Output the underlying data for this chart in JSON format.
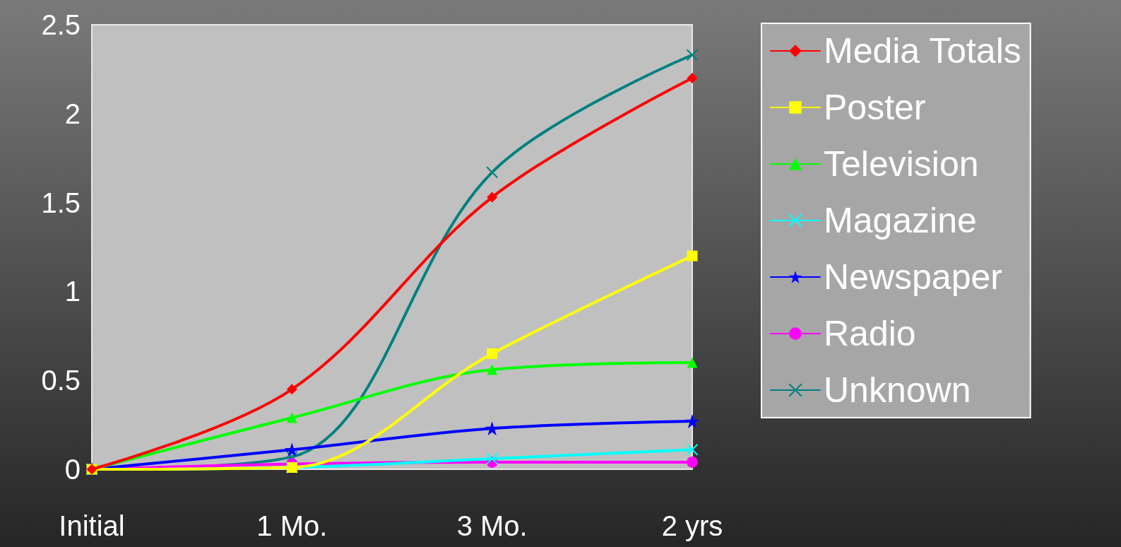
{
  "chart_data": {
    "type": "line",
    "categories": [
      "Initial",
      "1 Mo.",
      "3 Mo.",
      "2 yrs"
    ],
    "series": [
      {
        "name": "Media Totals",
        "color": "#ff0000",
        "marker": "diamond",
        "values": [
          0,
          0.45,
          1.53,
          2.2
        ]
      },
      {
        "name": "Poster",
        "color": "#ffff00",
        "marker": "square",
        "values": [
          0,
          0.01,
          0.65,
          1.2
        ]
      },
      {
        "name": "Television",
        "color": "#00ff00",
        "marker": "triangle",
        "values": [
          0,
          0.29,
          0.56,
          0.6
        ]
      },
      {
        "name": "Magazine",
        "color": "#00ffff",
        "marker": "cross",
        "values": [
          0,
          0.01,
          0.06,
          0.11
        ]
      },
      {
        "name": "Newspaper",
        "color": "#0000ff",
        "marker": "star",
        "values": [
          0,
          0.11,
          0.23,
          0.27
        ]
      },
      {
        "name": "Radio",
        "color": "#ff00ff",
        "marker": "circle",
        "values": [
          0,
          0.03,
          0.04,
          0.04
        ]
      },
      {
        "name": "Unknown",
        "color": "#008080",
        "marker": "cross",
        "values": [
          0,
          0.07,
          1.67,
          2.33
        ]
      }
    ],
    "ylim": [
      0,
      2.5
    ],
    "yticks": [
      0,
      0.5,
      1,
      1.5,
      2,
      2.5
    ],
    "grid": false,
    "legend": "right",
    "line_style": "solid"
  }
}
